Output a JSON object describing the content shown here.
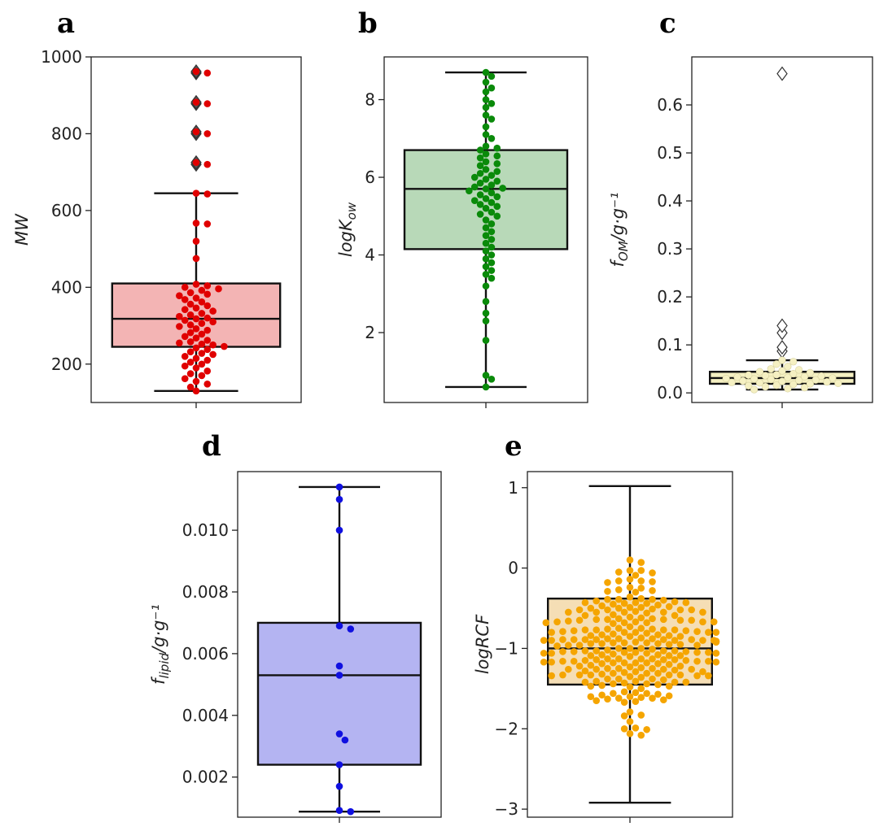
{
  "chart_data": [
    {
      "panel": "a",
      "type": "box-swarm",
      "ylabel": "MW",
      "ylim": [
        100,
        1000
      ],
      "yticks": [
        200,
        400,
        600,
        800,
        1000
      ],
      "tick_labels": [
        "200",
        "400",
        "600",
        "800",
        "1000"
      ],
      "color": "#e00000",
      "fill": "#f3b4b4",
      "box": {
        "min": 130,
        "q1": 245,
        "median": 318,
        "q3": 410,
        "max": 645
      },
      "outliers": [
        720,
        725,
        800,
        805,
        878,
        882,
        958,
        962
      ],
      "values": [
        130,
        140,
        148,
        155,
        162,
        170,
        175,
        182,
        190,
        195,
        200,
        205,
        210,
        215,
        220,
        225,
        228,
        232,
        238,
        242,
        246,
        250,
        252,
        255,
        258,
        262,
        268,
        272,
        278,
        282,
        288,
        292,
        298,
        302,
        306,
        310,
        314,
        318,
        320,
        324,
        328,
        332,
        338,
        342,
        346,
        352,
        356,
        362,
        368,
        372,
        378,
        382,
        386,
        392,
        396,
        400,
        404,
        408,
        475,
        520,
        565,
        567,
        643,
        645,
        720,
        725,
        800,
        805,
        878,
        882,
        958,
        962
      ]
    },
    {
      "panel": "b",
      "type": "box-swarm",
      "ylabel": "logK_ow",
      "ylim": [
        0.2,
        9.1
      ],
      "yticks": [
        2,
        4,
        6,
        8
      ],
      "tick_labels": [
        "2",
        "4",
        "6",
        "8"
      ],
      "color": "#0a8a0a",
      "fill": "#b8d9b8",
      "box": {
        "min": 0.6,
        "q1": 4.15,
        "median": 5.7,
        "q3": 6.7,
        "max": 8.7
      },
      "outliers": [],
      "values": [
        0.6,
        0.8,
        0.9,
        1.8,
        2.3,
        2.5,
        2.8,
        3.2,
        3.4,
        3.5,
        3.6,
        3.7,
        3.8,
        3.9,
        4.0,
        4.1,
        4.2,
        4.3,
        4.4,
        4.5,
        4.6,
        4.7,
        4.8,
        4.9,
        5.0,
        5.05,
        5.1,
        5.2,
        5.25,
        5.3,
        5.35,
        5.4,
        5.45,
        5.5,
        5.55,
        5.6,
        5.65,
        5.7,
        5.72,
        5.75,
        5.8,
        5.85,
        5.9,
        5.95,
        6.0,
        6.05,
        6.1,
        6.15,
        6.2,
        6.3,
        6.35,
        6.4,
        6.5,
        6.55,
        6.6,
        6.7,
        6.75,
        6.8,
        7.0,
        7.1,
        7.3,
        7.5,
        7.6,
        7.8,
        7.9,
        8.0,
        8.2,
        8.3,
        8.45,
        8.6,
        8.7
      ]
    },
    {
      "panel": "c",
      "type": "box-swarm",
      "ylabel": "f_OM/g·g⁻¹",
      "ylim": [
        -0.02,
        0.7
      ],
      "yticks": [
        0.0,
        0.1,
        0.2,
        0.3,
        0.4,
        0.5,
        0.6
      ],
      "tick_labels": [
        "0.0",
        "0.1",
        "0.2",
        "0.3",
        "0.4",
        "0.5",
        "0.6"
      ],
      "color": "#f5f0c2",
      "fill": "#f5f0c2",
      "box": {
        "min": 0.007,
        "q1": 0.019,
        "median": 0.031,
        "q3": 0.044,
        "max": 0.068
      },
      "outliers": [
        0.087,
        0.095,
        0.125,
        0.14,
        0.665
      ],
      "values": [
        0.007,
        0.009,
        0.011,
        0.013,
        0.015,
        0.016,
        0.018,
        0.019,
        0.02,
        0.021,
        0.022,
        0.023,
        0.024,
        0.025,
        0.026,
        0.027,
        0.028,
        0.029,
        0.03,
        0.031,
        0.032,
        0.033,
        0.034,
        0.035,
        0.036,
        0.037,
        0.038,
        0.04,
        0.042,
        0.044,
        0.046,
        0.048,
        0.05,
        0.055,
        0.06,
        0.065,
        0.068
      ]
    },
    {
      "panel": "d",
      "type": "box-swarm",
      "ylabel": "f_lipid/g·g⁻¹",
      "ylim": [
        0.0007,
        0.0119
      ],
      "yticks": [
        0.002,
        0.004,
        0.006,
        0.008,
        0.01
      ],
      "tick_labels": [
        "0.002",
        "0.004",
        "0.006",
        "0.008",
        "0.010"
      ],
      "color": "#1010e0",
      "fill": "#b4b4f2",
      "box": {
        "min": 0.00088,
        "q1": 0.0024,
        "median": 0.0053,
        "q3": 0.007,
        "max": 0.0114
      },
      "outliers": [],
      "values": [
        0.00088,
        0.00092,
        0.0017,
        0.0024,
        0.0032,
        0.0034,
        0.0053,
        0.0056,
        0.0068,
        0.0069,
        0.01,
        0.011,
        0.0114
      ]
    },
    {
      "panel": "e",
      "type": "box-swarm",
      "ylabel": "logRCF",
      "ylim": [
        -3.1,
        1.2
      ],
      "yticks": [
        -3,
        -2,
        -1,
        0,
        1
      ],
      "tick_labels": [
        "−3",
        "−2",
        "−1",
        "0",
        "1"
      ],
      "color": "#f5a500",
      "fill": "#f5deb5",
      "box": {
        "min": -2.92,
        "q1": -1.45,
        "median": -1.0,
        "q3": -0.38,
        "max": 1.02
      },
      "outliers": [],
      "values": []
    }
  ],
  "panel_letters": [
    "a",
    "b",
    "c",
    "d",
    "e"
  ]
}
